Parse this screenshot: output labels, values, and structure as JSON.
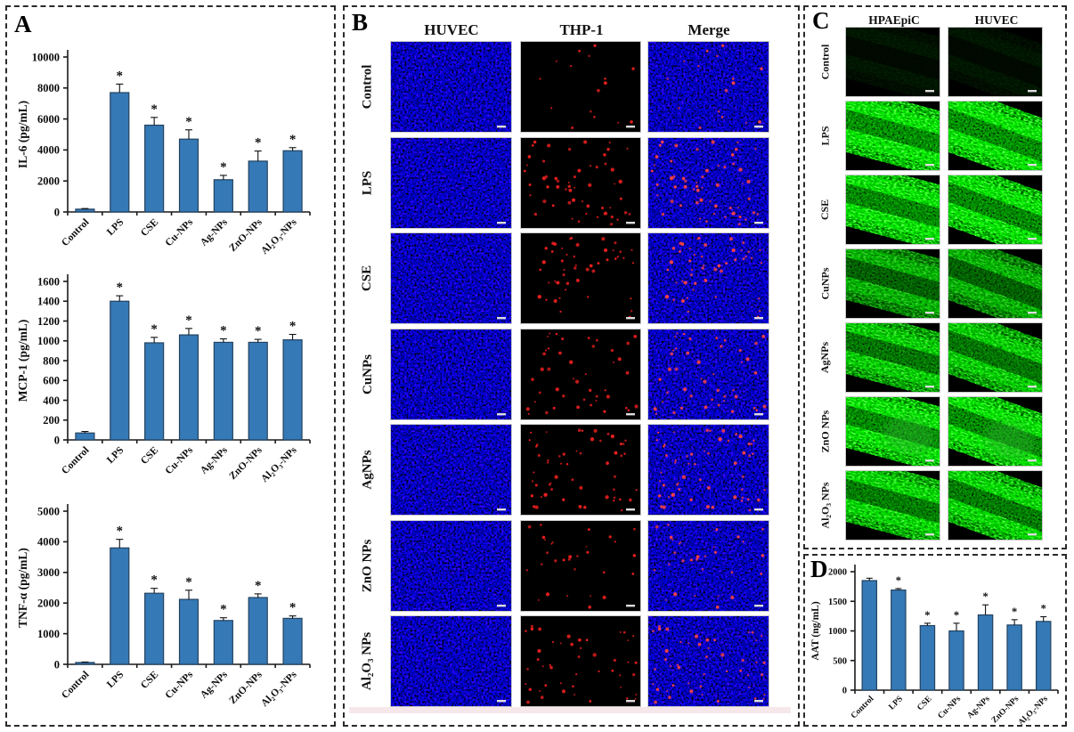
{
  "colors": {
    "bar_fill": "#3579b6",
    "bar_border": "#24425f",
    "axis": "#1a1a1a",
    "dapi_blue": "#2121cc",
    "thp1_red": "#ee1f1f",
    "merge_red": "#ff4242",
    "gfp_green": "#2fae2f"
  },
  "panels": {
    "A": {
      "label": "A"
    },
    "B": {
      "label": "B",
      "columns": [
        "HUVEC",
        "THP-1",
        "Merge"
      ],
      "rows": [
        {
          "label": "Control",
          "thp1_dot_count": 16
        },
        {
          "label": "LPS",
          "thp1_dot_count": 56
        },
        {
          "label": "CSE",
          "thp1_dot_count": 50
        },
        {
          "label": "CuNPs",
          "thp1_dot_count": 44
        },
        {
          "label": "AgNPs",
          "thp1_dot_count": 56
        },
        {
          "label": "ZnO NPs",
          "thp1_dot_count": 30
        },
        {
          "label": "Al₂O₃ NPs",
          "thp1_dot_count": 46
        }
      ]
    },
    "C": {
      "label": "C",
      "columns": [
        "HPAEpiC",
        "HUVEC"
      ],
      "rows": [
        {
          "label": "Control",
          "intensity": 0.06,
          "blob": false
        },
        {
          "label": "LPS",
          "intensity": 0.95,
          "blob": false
        },
        {
          "label": "CSE",
          "intensity": 0.9,
          "blob": false
        },
        {
          "label": "CuNPs",
          "intensity": 0.6,
          "blob": false
        },
        {
          "label": "AgNPs",
          "intensity": 0.75,
          "blob": false
        },
        {
          "label": "ZnO NPs",
          "intensity": 0.9,
          "blob": true
        },
        {
          "label": "Al₂O₃ NPs",
          "intensity": 0.8,
          "blob": false
        }
      ]
    },
    "D": {
      "label": "D"
    }
  },
  "chart_data": [
    {
      "panel": "A",
      "type": "bar",
      "ylabel": "IL-6 (pg/mL)",
      "categories": [
        "Control",
        "LPS",
        "CSE",
        "Cu-NPs",
        "Ag-NPs",
        "ZnO-NPs",
        "Al₂O₃-NPs"
      ],
      "values": [
        180,
        7700,
        5600,
        4700,
        2080,
        3280,
        3950
      ],
      "errors": [
        40,
        550,
        500,
        600,
        280,
        650,
        200
      ],
      "significance": [
        false,
        true,
        true,
        true,
        true,
        true,
        true
      ],
      "sig_symbol": "*",
      "ylim": [
        0,
        10000
      ],
      "ytick": 2000,
      "grid": false,
      "legend": "none"
    },
    {
      "panel": "A",
      "type": "bar",
      "ylabel": "MCP-1 (pg/mL)",
      "categories": [
        "Control",
        "LPS",
        "CSE",
        "Cu-NPs",
        "Ag-NPs",
        "ZnO-NPs",
        "Al₂O₃-NPs"
      ],
      "values": [
        70,
        1400,
        980,
        1060,
        985,
        985,
        1010
      ],
      "errors": [
        15,
        55,
        55,
        65,
        35,
        30,
        55
      ],
      "significance": [
        false,
        true,
        true,
        true,
        true,
        true,
        true
      ],
      "sig_symbol": "*",
      "ylim": [
        0,
        1600
      ],
      "ytick": 200,
      "grid": false,
      "legend": "none"
    },
    {
      "panel": "A",
      "type": "bar",
      "ylabel": "TNF-α (pg/mL)",
      "categories": [
        "Control",
        "LPS",
        "CSE",
        "Cu-NPs",
        "Ag-NPs",
        "ZnO-NPs",
        "Al₂O₃-NPs"
      ],
      "values": [
        60,
        3800,
        2320,
        2120,
        1430,
        2180,
        1500
      ],
      "errors": [
        15,
        280,
        160,
        300,
        90,
        120,
        80
      ],
      "significance": [
        false,
        true,
        true,
        true,
        true,
        true,
        true
      ],
      "sig_symbol": "*",
      "ylim": [
        0,
        5000
      ],
      "ytick": 1000,
      "grid": false,
      "legend": "none"
    },
    {
      "panel": "D",
      "type": "bar",
      "ylabel": "AAT (ng/mL)",
      "categories": [
        "Control",
        "LPS",
        "CSE",
        "Cu-NPs",
        "Ag-NPs",
        "ZnO-NPs",
        "Al₂O₃-NPs"
      ],
      "values": [
        1850,
        1690,
        1090,
        1000,
        1270,
        1100,
        1160
      ],
      "errors": [
        40,
        25,
        40,
        130,
        170,
        90,
        80
      ],
      "significance": [
        false,
        true,
        true,
        true,
        true,
        true,
        true
      ],
      "sig_symbol": "*",
      "ylim": [
        0,
        2000
      ],
      "ytick": 500,
      "grid": false,
      "legend": "none"
    }
  ]
}
